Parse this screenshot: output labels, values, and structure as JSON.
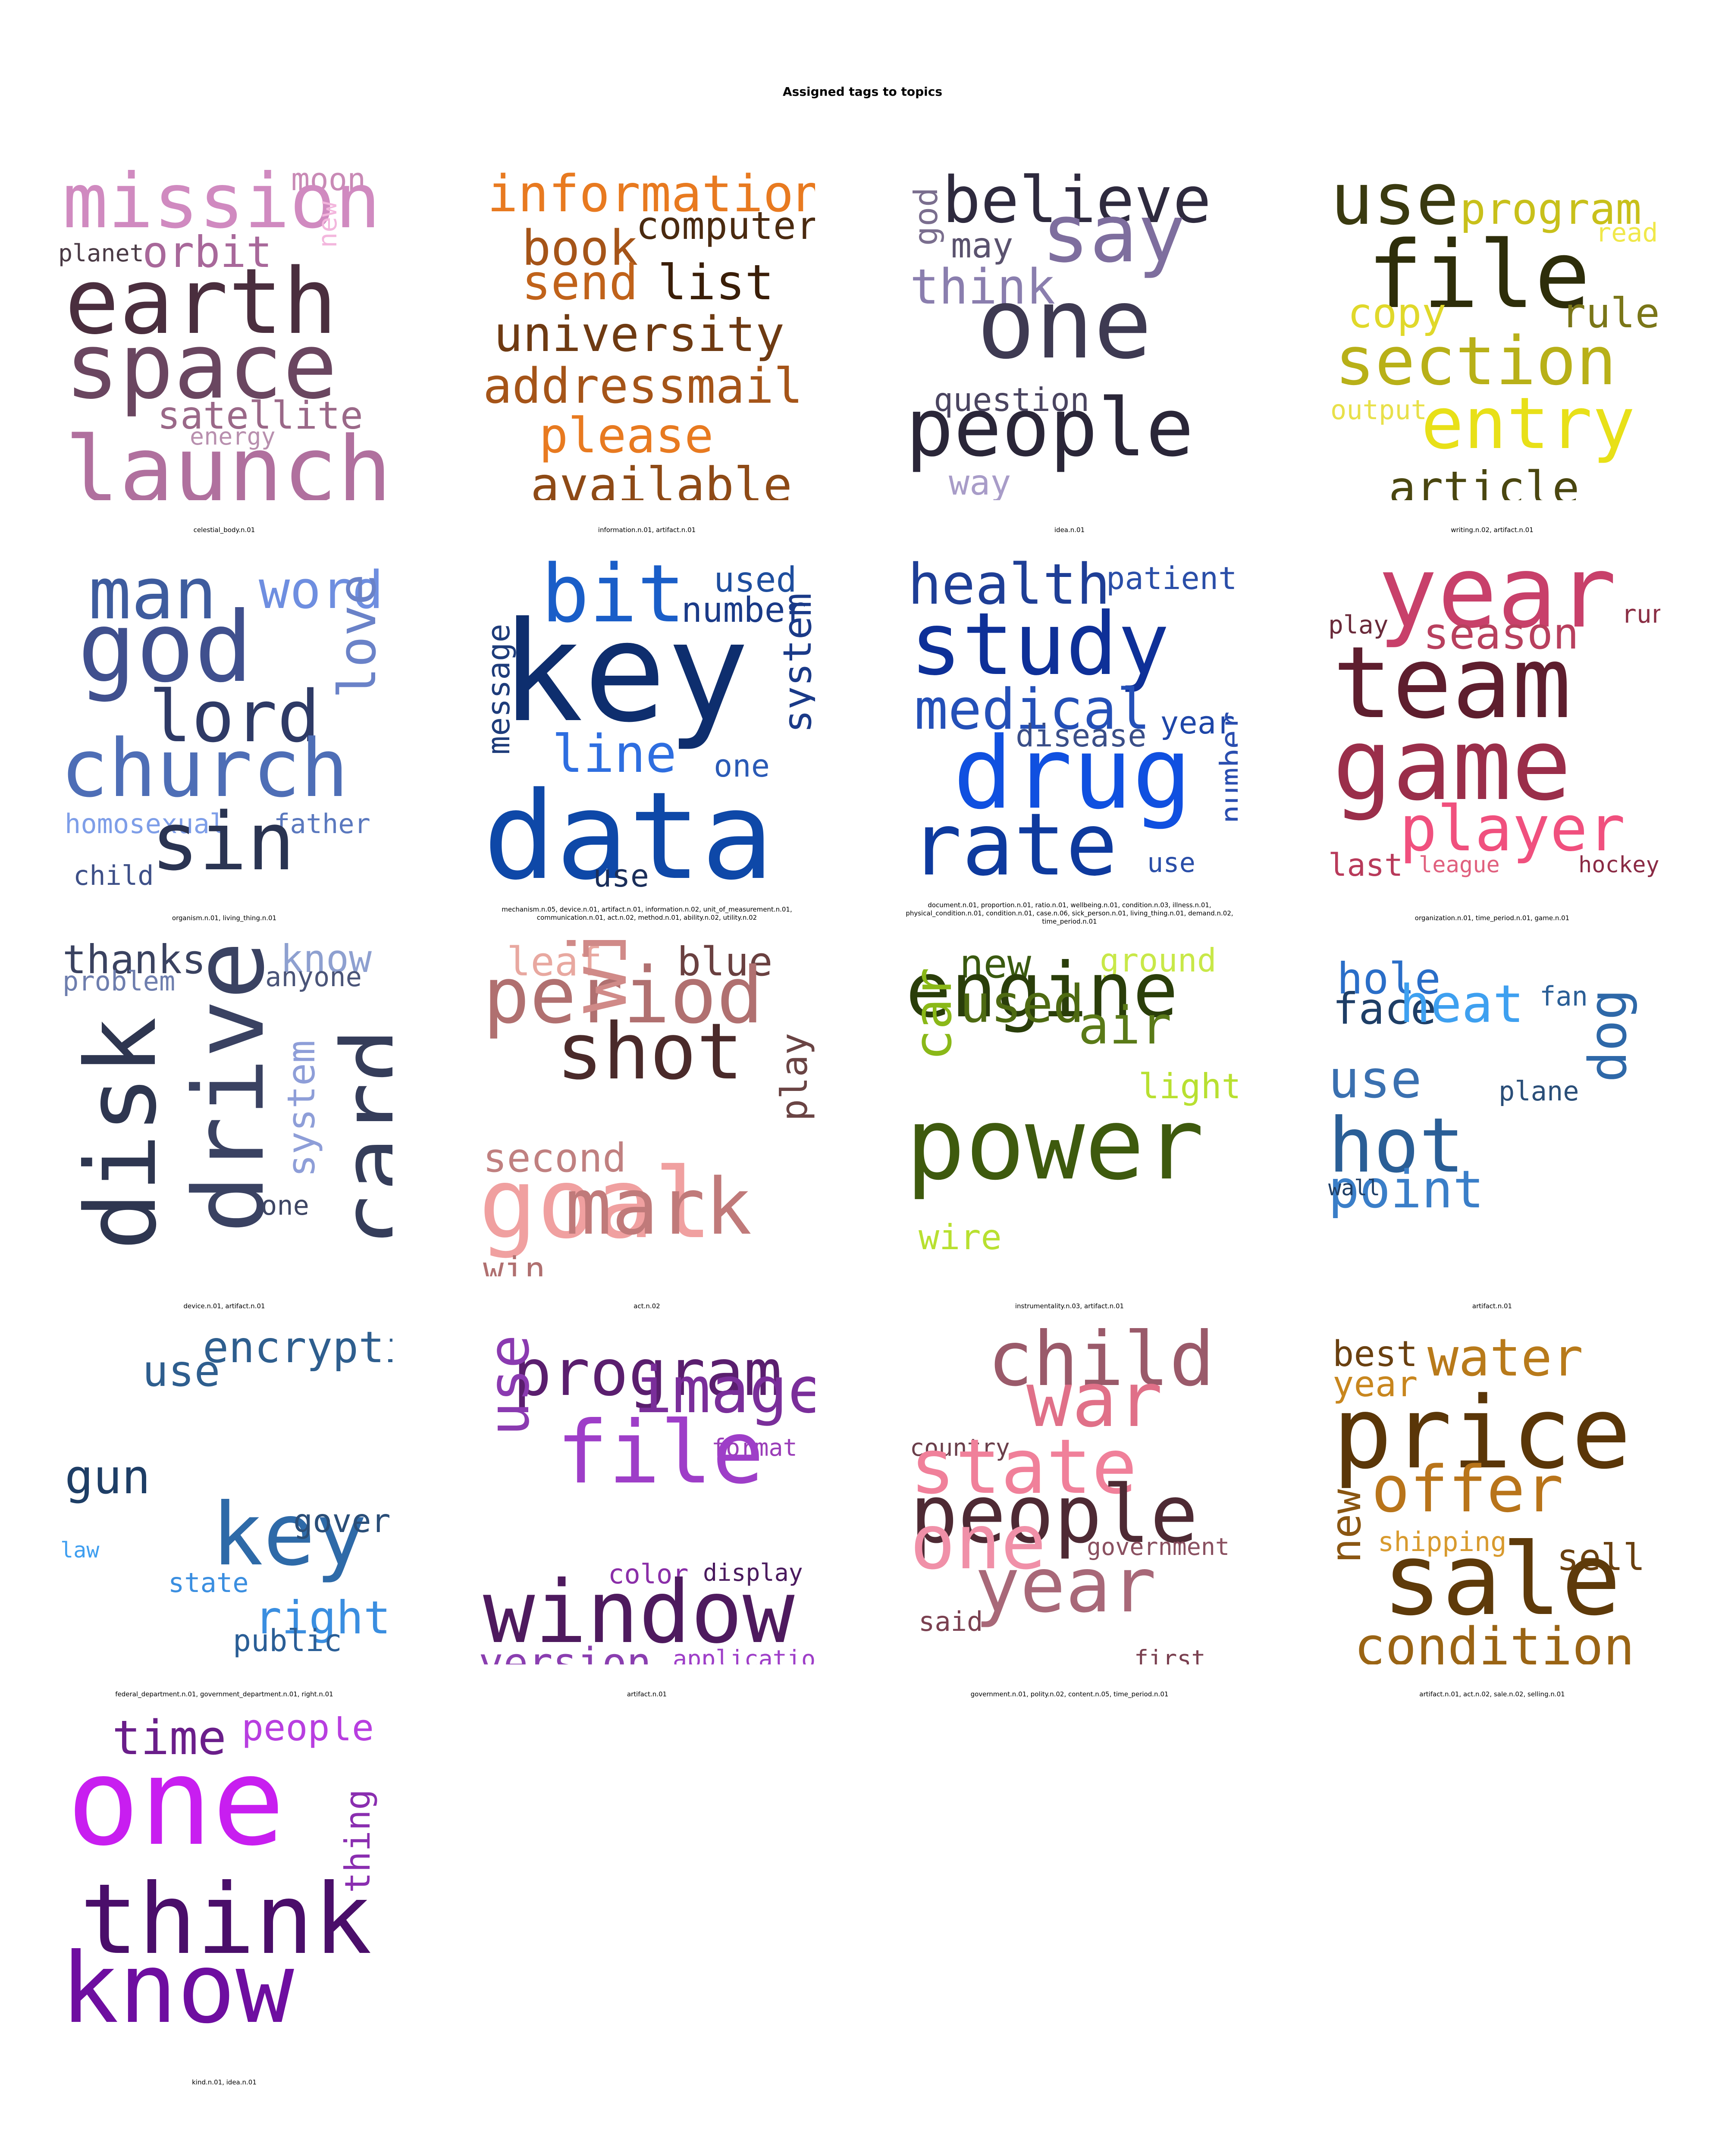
{
  "figure": {
    "title": "Assigned tags to topics"
  },
  "panels": [
    {
      "caption": "celestial_body.n.01",
      "words": [
        {
          "text": "moon",
          "color": "#C98AB6"
        },
        {
          "text": "mission",
          "color": "#D08AC0"
        },
        {
          "text": "planet",
          "color": "#4A3A45"
        },
        {
          "text": "orbit",
          "color": "#A8689A"
        },
        {
          "text": "new",
          "color": "#F3B6DD"
        },
        {
          "text": "earth",
          "color": "#4A2E3E"
        },
        {
          "text": "space",
          "color": "#6A4660"
        },
        {
          "text": "satellite",
          "color": "#9A6888"
        },
        {
          "text": "energy",
          "color": "#B88FAE"
        },
        {
          "text": "launch",
          "color": "#B0709E"
        }
      ]
    },
    {
      "caption": "information.n.01, artifact.n.01",
      "words": [
        {
          "text": "information",
          "color": "#E87A20"
        },
        {
          "text": "computer",
          "color": "#4A2A10"
        },
        {
          "text": "book",
          "color": "#A55418"
        },
        {
          "text": "send",
          "color": "#C0621A"
        },
        {
          "text": "list",
          "color": "#3A1E08"
        },
        {
          "text": "university",
          "color": "#6E3A12"
        },
        {
          "text": "addressmail",
          "color": "#A55418"
        },
        {
          "text": "please",
          "color": "#E87A20"
        },
        {
          "text": "available",
          "color": "#8E4A16"
        }
      ]
    },
    {
      "caption": "idea.n.01",
      "words": [
        {
          "text": "god",
          "color": "#7A6E8E"
        },
        {
          "text": "believe",
          "color": "#2E2A3E"
        },
        {
          "text": "may",
          "color": "#5A526E"
        },
        {
          "text": "say",
          "color": "#7E6E9E"
        },
        {
          "text": "think",
          "color": "#8A7EAE"
        },
        {
          "text": "one",
          "color": "#3E3A52"
        },
        {
          "text": "question",
          "color": "#4A4460"
        },
        {
          "text": "people",
          "color": "#2A2638"
        },
        {
          "text": "way",
          "color": "#A89CC8"
        }
      ]
    },
    {
      "caption": "writing.n.02, artifact.n.01",
      "words": [
        {
          "text": "use",
          "color": "#3A3A10"
        },
        {
          "text": "program",
          "color": "#C8C01A"
        },
        {
          "text": "read",
          "color": "#F0E84A"
        },
        {
          "text": "file",
          "color": "#2E2E0A"
        },
        {
          "text": "copy",
          "color": "#E0D82A"
        },
        {
          "text": "rule",
          "color": "#7A7618"
        },
        {
          "text": "section",
          "color": "#B8B018"
        },
        {
          "text": "output",
          "color": "#E8E04A"
        },
        {
          "text": "entry",
          "color": "#E8E018"
        },
        {
          "text": "article",
          "color": "#4A4610"
        }
      ]
    },
    {
      "caption": "organism.n.01, living_thing.n.01",
      "words": [
        {
          "text": "man",
          "color": "#3E5C9E"
        },
        {
          "text": "word",
          "color": "#6E8EE0"
        },
        {
          "text": "love",
          "color": "#6A82C8"
        },
        {
          "text": "god",
          "color": "#40508E"
        },
        {
          "text": "lord",
          "color": "#2E3A66"
        },
        {
          "text": "church",
          "color": "#4E6EB6"
        },
        {
          "text": "homosexual",
          "color": "#7E9EE8"
        },
        {
          "text": "father",
          "color": "#5A78BE"
        },
        {
          "text": "child",
          "color": "#3E5088"
        },
        {
          "text": "sin",
          "color": "#2A3452"
        }
      ]
    },
    {
      "caption": "mechanism.n.05, device.n.01, artifact.n.01, information.n.02, unit_of_measurement.n.01, communication.n.01, act.n.02, method.n.01, ability.n.02, utility.n.02",
      "words": [
        {
          "text": "bit",
          "color": "#1A5EC8"
        },
        {
          "text": "used",
          "color": "#1E4E9E"
        },
        {
          "text": "number",
          "color": "#1A3A88"
        },
        {
          "text": "message",
          "color": "#1E3C7A"
        },
        {
          "text": "key",
          "color": "#0E2E6E"
        },
        {
          "text": "system",
          "color": "#1A3A88"
        },
        {
          "text": "line",
          "color": "#2E6EE0"
        },
        {
          "text": "one",
          "color": "#2A5AB6"
        },
        {
          "text": "data",
          "color": "#0E48A8"
        },
        {
          "text": "use",
          "color": "#1A2E5A"
        }
      ]
    },
    {
      "caption": "document.n.01, proportion.n.01, ratio.n.01, wellbeing.n.01, condition.n.03, illness.n.01, physical_condition.n.01, condition.n.01, case.n.06, sick_person.n.01, living_thing.n.01, demand.n.02, time_period.n.01",
      "words": [
        {
          "text": "health",
          "color": "#1E3E96"
        },
        {
          "text": "patient",
          "color": "#2A4EA8"
        },
        {
          "text": "study",
          "color": "#0E3098"
        },
        {
          "text": "medical",
          "color": "#2450B8"
        },
        {
          "text": "year",
          "color": "#1E46A8"
        },
        {
          "text": "disease",
          "color": "#3A4E88"
        },
        {
          "text": "number",
          "color": "#2A4EB0"
        },
        {
          "text": "drug",
          "color": "#1050E0"
        },
        {
          "text": "rate",
          "color": "#0E3A9E"
        },
        {
          "text": "use",
          "color": "#2A4EA8"
        }
      ]
    },
    {
      "caption": "organization.n.01, time_period.n.01, game.n.01",
      "words": [
        {
          "text": "year",
          "color": "#C8406A"
        },
        {
          "text": "play",
          "color": "#6A2A3A"
        },
        {
          "text": "run",
          "color": "#8A2E44"
        },
        {
          "text": "season",
          "color": "#B8405E"
        },
        {
          "text": "team",
          "color": "#5E1E2E"
        },
        {
          "text": "game",
          "color": "#9A2E4A"
        },
        {
          "text": "player",
          "color": "#F0507E"
        },
        {
          "text": "last",
          "color": "#B83A5A"
        },
        {
          "text": "league",
          "color": "#E0607E"
        },
        {
          "text": "hockey",
          "color": "#8A2A44"
        }
      ]
    },
    {
      "caption": "device.n.01, artifact.n.01",
      "words": [
        {
          "text": "thanks",
          "color": "#3A4260"
        },
        {
          "text": "know",
          "color": "#8EA0D0"
        },
        {
          "text": "anyone",
          "color": "#4A5478"
        },
        {
          "text": "problem",
          "color": "#6E7EAE"
        },
        {
          "text": "disk",
          "color": "#2E3650"
        },
        {
          "text": "drive",
          "color": "#3A4262"
        },
        {
          "text": "system",
          "color": "#8E9ED8"
        },
        {
          "text": "card",
          "color": "#353D5A"
        },
        {
          "text": "one",
          "color": "#3E4664"
        }
      ]
    },
    {
      "caption": "act.n.02",
      "words": [
        {
          "text": "leaf",
          "color": "#E8A8A0"
        },
        {
          "text": "blue",
          "color": "#6A4040"
        },
        {
          "text": "period",
          "color": "#B07070"
        },
        {
          "text": "wing",
          "color": "#D08A88"
        },
        {
          "text": "shot",
          "color": "#4A2A2A"
        },
        {
          "text": "play",
          "color": "#6A4444"
        },
        {
          "text": "second",
          "color": "#C08080"
        },
        {
          "text": "goal",
          "color": "#F0A0A0"
        },
        {
          "text": "mark",
          "color": "#C07A7A"
        },
        {
          "text": "win",
          "color": "#B07070"
        }
      ]
    },
    {
      "caption": "instrumentality.n.03, artifact.n.01",
      "words": [
        {
          "text": "new",
          "color": "#3A5A10"
        },
        {
          "text": "ground",
          "color": "#C8E848"
        },
        {
          "text": "engine",
          "color": "#2A3E0A"
        },
        {
          "text": "used",
          "color": "#4E6A12"
        },
        {
          "text": "air",
          "color": "#5A7A18"
        },
        {
          "text": "car",
          "color": "#8AB818"
        },
        {
          "text": "light",
          "color": "#B8E030"
        },
        {
          "text": "power",
          "color": "#3E5A0E"
        },
        {
          "text": "wire",
          "color": "#B8E030"
        }
      ]
    },
    {
      "caption": "artifact.n.01",
      "words": [
        {
          "text": "hole",
          "color": "#2A6EC8"
        },
        {
          "text": "face",
          "color": "#1E3E66"
        },
        {
          "text": "fan",
          "color": "#2A5E96"
        },
        {
          "text": "heat",
          "color": "#3EA0F0"
        },
        {
          "text": "use",
          "color": "#3A70B0"
        },
        {
          "text": "plane",
          "color": "#2A4E78"
        },
        {
          "text": "dog",
          "color": "#2E68A8"
        },
        {
          "text": "hot",
          "color": "#2A5E96"
        },
        {
          "text": "point",
          "color": "#3A7EC8"
        },
        {
          "text": "wall",
          "color": "#1E3E66"
        }
      ]
    },
    {
      "caption": "federal_department.n.01, government_department.n.01, right.n.01",
      "words": [
        {
          "text": "encryption",
          "color": "#2E5E8E"
        },
        {
          "text": "key",
          "color": "#2E6AA8"
        },
        {
          "text": "right",
          "color": "#3A8EE0"
        },
        {
          "text": "public",
          "color": "#2A5E96"
        },
        {
          "text": "gun",
          "color": "#1E3E66"
        },
        {
          "text": "government",
          "color": "#2A4E78"
        },
        {
          "text": "use",
          "color": "#2E5E8E"
        },
        {
          "text": "state",
          "color": "#3A8EE0"
        },
        {
          "text": "law",
          "color": "#3E9EF0"
        }
      ]
    },
    {
      "caption": "artifact.n.01",
      "words": [
        {
          "text": "program",
          "color": "#5A1E6E"
        },
        {
          "text": "image",
          "color": "#7A2E9A"
        },
        {
          "text": "format",
          "color": "#9A3EB8"
        },
        {
          "text": "use",
          "color": "#8A3AB0"
        },
        {
          "text": "file",
          "color": "#9E3EC8"
        },
        {
          "text": "color",
          "color": "#8A2EA8"
        },
        {
          "text": "display",
          "color": "#4A1A5E"
        },
        {
          "text": "window",
          "color": "#4E1A5E"
        },
        {
          "text": "version",
          "color": "#8A3EB0"
        },
        {
          "text": "application",
          "color": "#9E3EC8"
        }
      ]
    },
    {
      "caption": "government.n.01, polity.n.02, content.n.05, time_period.n.01",
      "words": [
        {
          "text": "child",
          "color": "#9A5A6A"
        },
        {
          "text": "country",
          "color": "#6A3E4A"
        },
        {
          "text": "war",
          "color": "#E07088"
        },
        {
          "text": "state",
          "color": "#F0809A"
        },
        {
          "text": "people",
          "color": "#4E2A34"
        },
        {
          "text": "government",
          "color": "#8A5060"
        },
        {
          "text": "one",
          "color": "#F090A8"
        },
        {
          "text": "year",
          "color": "#A86878"
        },
        {
          "text": "said",
          "color": "#7A4050"
        },
        {
          "text": "first",
          "color": "#7A4050"
        }
      ]
    },
    {
      "caption": "artifact.n.01, act.n.02, sale.n.02, selling.n.01",
      "words": [
        {
          "text": "best",
          "color": "#6A4010"
        },
        {
          "text": "water",
          "color": "#B87A1A"
        },
        {
          "text": "year",
          "color": "#C8861E"
        },
        {
          "text": "price",
          "color": "#5A3608"
        },
        {
          "text": "offer",
          "color": "#B8741A"
        },
        {
          "text": "shipping",
          "color": "#D89A2E"
        },
        {
          "text": "sell",
          "color": "#6A4010"
        },
        {
          "text": "new",
          "color": "#8A5612"
        },
        {
          "text": "sale",
          "color": "#5E3A0A"
        },
        {
          "text": "condition",
          "color": "#9A6414"
        }
      ]
    },
    {
      "caption": "kind.n.01, idea.n.01",
      "words": [
        {
          "text": "time",
          "color": "#6A1E8A"
        },
        {
          "text": "people",
          "color": "#B83EE0"
        },
        {
          "text": "one",
          "color": "#C81EF0"
        },
        {
          "text": "thing",
          "color": "#8A2EB0"
        },
        {
          "text": "think",
          "color": "#4A0E6A"
        },
        {
          "text": "know",
          "color": "#6E0EA0"
        }
      ]
    }
  ]
}
